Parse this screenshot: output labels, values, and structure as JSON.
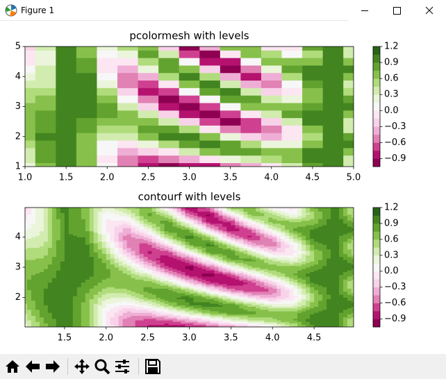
{
  "window": {
    "title": "Figure 1"
  },
  "chart_data": [
    {
      "type": "pcolormesh",
      "title": "pcolormesh with levels",
      "x": [
        1.0,
        1.25,
        1.5,
        1.75,
        2.0,
        2.25,
        2.5,
        2.75,
        3.0,
        3.25,
        3.5,
        3.75,
        4.0,
        4.25,
        4.5,
        4.75,
        5.0
      ],
      "y": [
        1.0,
        1.25,
        1.5,
        1.75,
        2.0,
        2.25,
        2.5,
        2.75,
        3.0,
        3.25,
        3.5,
        3.75,
        4.0,
        4.25,
        4.5,
        4.75,
        5.0
      ],
      "z": [
        [
          0.18,
          0.314,
          0.439,
          0.548,
          0.634,
          0.691,
          0.717,
          0.709,
          0.668,
          0.597,
          0.5,
          0.382,
          0.252,
          0.117,
          -0.013,
          -0.132,
          -0.232
        ],
        [
          0.672,
          0.762,
          0.835,
          0.885,
          0.907,
          0.898,
          0.86,
          0.795,
          0.712,
          0.616,
          0.518,
          0.428,
          0.353,
          0.301,
          0.278,
          0.286,
          0.322
        ],
        [
          1.009,
          1.029,
          1.042,
          1.046,
          1.039,
          1.024,
          1.002,
          0.976,
          0.95,
          0.927,
          0.912,
          0.905,
          0.907,
          0.92,
          0.939,
          0.964,
          0.991
        ],
        [
          0.729,
          0.685,
          0.673,
          0.694,
          0.745,
          0.816,
          0.893,
          0.962,
          1.011,
          1.029,
          1.014,
          0.968,
          0.9,
          0.823,
          0.751,
          0.698,
          0.674
        ],
        [
          0.035,
          -0.029,
          0.009,
          0.139,
          0.33,
          0.534,
          0.702,
          0.793,
          0.785,
          0.679,
          0.501,
          0.295,
          0.112,
          -0.004,
          -0.025,
          0.055,
          0.216
        ],
        [
          -0.516,
          -0.528,
          -0.353,
          -0.043,
          0.304,
          0.582,
          0.707,
          0.639,
          0.399,
          0.06,
          -0.271,
          -0.494,
          -0.54,
          -0.394,
          -0.101,
          0.247,
          0.545
        ],
        [
          -0.793,
          -0.673,
          -0.297,
          0.194,
          0.613,
          0.804,
          0.693,
          0.321,
          -0.17,
          -0.594,
          -0.791,
          -0.687,
          -0.321,
          0.169,
          0.597,
          0.802,
          0.706
        ],
        [
          -0.909,
          -0.595,
          -0.011,
          0.577,
          0.904,
          0.82,
          0.363,
          -0.259,
          -0.763,
          -0.921,
          -0.66,
          -0.099,
          0.509,
          0.882,
          0.857,
          0.443,
          -0.173
        ],
        [
          -0.899,
          -0.374,
          0.35,
          0.888,
          0.949,
          0.5,
          -0.217,
          -0.817,
          -0.979,
          -0.615,
          0.079,
          0.73,
          0.99,
          0.72,
          0.061,
          -0.629,
          -0.981
        ],
        [
          -0.771,
          -0.074,
          0.668,
          0.994,
          0.699,
          -0.034,
          -0.744,
          -0.99,
          -0.618,
          0.141,
          0.809,
          0.975,
          0.53,
          -0.246,
          -0.869,
          -0.948,
          -0.436
        ],
        [
          -0.558,
          0.22,
          0.84,
          0.858,
          0.258,
          -0.526,
          -0.932,
          -0.669,
          0.074,
          0.762,
          0.905,
          0.397,
          -0.397,
          -0.906,
          -0.764,
          -0.074,
          0.669
        ],
        [
          -0.307,
          0.432,
          0.821,
          0.543,
          -0.176,
          -0.748,
          -0.706,
          -0.084,
          0.609,
          0.808,
          0.351,
          -0.387,
          -0.809,
          -0.565,
          0.144,
          0.738,
          0.733
        ],
        [
          -0.028,
          0.557,
          0.688,
          0.242,
          -0.37,
          -0.584,
          -0.205,
          0.422,
          0.715,
          0.41,
          -0.215,
          -0.586,
          -0.361,
          0.253,
          0.691,
          0.552,
          -0.039
        ],
        [
          0.38,
          0.742,
          0.679,
          0.259,
          -0.089,
          -0.007,
          0.421,
          0.756,
          0.654,
          0.219,
          -0.101,
          0.02,
          0.46,
          0.766,
          0.624,
          0.069,
          -0.113
        ],
        [
          0.871,
          1.007,
          0.903,
          0.678,
          0.588,
          0.735,
          0.952,
          0.992,
          0.81,
          0.612,
          0.625,
          0.832,
          0.999,
          0.936,
          0.663,
          0.592,
          0.754
        ],
        [
          0.971,
          0.956,
          0.987,
          1.025,
          1.023,
          0.983,
          0.956,
          0.975,
          1.017,
          1.029,
          0.996,
          0.959,
          0.965,
          1.015,
          1.03,
          0.998,
          0.96
        ],
        [
          0.442,
          0.414,
          0.72,
          0.94,
          0.773,
          0.448,
          0.409,
          0.71,
          0.938,
          0.782,
          0.455,
          0.405,
          0.701,
          0.939,
          0.715,
          0.412,
          0.401
        ]
      ],
      "levels": [
        -1.05,
        -0.9,
        -0.75,
        -0.6,
        -0.45,
        -0.3,
        -0.15,
        0,
        0.15,
        0.3,
        0.45,
        0.6,
        0.75,
        0.9,
        1.05,
        1.2
      ],
      "colors": [
        "#8e0152",
        "#b51270",
        "#cf4190",
        "#e181b4",
        "#efaed5",
        "#f8d2e9",
        "#fbe6f2",
        "#f7f7f7",
        "#ebf5db",
        "#d2ecb0",
        "#b0dc7c",
        "#87c14b",
        "#62a32f",
        "#428520",
        "#276419"
      ],
      "xlim": [
        1,
        5
      ],
      "ylim": [
        1,
        5
      ],
      "xticks": [
        {
          "value": 1,
          "label": "1.0"
        },
        1.5,
        {
          "value": 2,
          "label": "2.0"
        },
        2.5,
        {
          "value": 3,
          "label": "3.0"
        },
        3.5,
        {
          "value": 4,
          "label": "4.0"
        },
        4.5,
        {
          "value": 5,
          "label": "5.0"
        }
      ],
      "yticks": [
        1,
        2,
        3,
        4,
        5
      ],
      "cbar_ticks": [
        {
          "value": -0.9,
          "label": "−0.9"
        },
        {
          "value": -0.6,
          "label": "−0.6"
        },
        {
          "value": -0.3,
          "label": "−0.3"
        },
        {
          "value": 0,
          "label": "0.0"
        },
        0.3,
        0.6,
        0.9,
        1.2
      ]
    },
    {
      "type": "contourf",
      "title": "contourf with levels",
      "x": [
        1.0,
        1.25,
        1.5,
        1.75,
        2.0,
        2.25,
        2.5,
        2.75,
        3.0,
        3.25,
        3.5,
        3.75,
        4.0,
        4.25,
        4.5,
        4.75,
        5.0
      ],
      "y": [
        1.0,
        1.25,
        1.5,
        1.75,
        2.0,
        2.25,
        2.5,
        2.75,
        3.0,
        3.25,
        3.5,
        3.75,
        4.0,
        4.25,
        4.5,
        4.75,
        5.0
      ],
      "z": [
        [
          0.18,
          0.314,
          0.439,
          0.548,
          0.634,
          0.691,
          0.717,
          0.709,
          0.668,
          0.597,
          0.5,
          0.382,
          0.252,
          0.117,
          -0.013,
          -0.132,
          -0.232
        ],
        [
          0.672,
          0.762,
          0.835,
          0.885,
          0.907,
          0.898,
          0.86,
          0.795,
          0.712,
          0.616,
          0.518,
          0.428,
          0.353,
          0.301,
          0.278,
          0.286,
          0.322
        ],
        [
          1.009,
          1.029,
          1.042,
          1.046,
          1.039,
          1.024,
          1.002,
          0.976,
          0.95,
          0.927,
          0.912,
          0.905,
          0.907,
          0.92,
          0.939,
          0.964,
          0.991
        ],
        [
          0.729,
          0.685,
          0.673,
          0.694,
          0.745,
          0.816,
          0.893,
          0.962,
          1.011,
          1.029,
          1.014,
          0.968,
          0.9,
          0.823,
          0.751,
          0.698,
          0.674
        ],
        [
          0.035,
          -0.029,
          0.009,
          0.139,
          0.33,
          0.534,
          0.702,
          0.793,
          0.785,
          0.679,
          0.501,
          0.295,
          0.112,
          -0.004,
          -0.025,
          0.055,
          0.216
        ],
        [
          -0.516,
          -0.528,
          -0.353,
          -0.043,
          0.304,
          0.582,
          0.707,
          0.639,
          0.399,
          0.06,
          -0.271,
          -0.494,
          -0.54,
          -0.394,
          -0.101,
          0.247,
          0.545
        ],
        [
          -0.793,
          -0.673,
          -0.297,
          0.194,
          0.613,
          0.804,
          0.693,
          0.321,
          -0.17,
          -0.594,
          -0.791,
          -0.687,
          -0.321,
          0.169,
          0.597,
          0.802,
          0.706
        ],
        [
          -0.909,
          -0.595,
          -0.011,
          0.577,
          0.904,
          0.82,
          0.363,
          -0.259,
          -0.763,
          -0.921,
          -0.66,
          -0.099,
          0.509,
          0.882,
          0.857,
          0.443,
          -0.173
        ],
        [
          -0.899,
          -0.374,
          0.35,
          0.888,
          0.949,
          0.5,
          -0.217,
          -0.817,
          -0.979,
          -0.615,
          0.079,
          0.73,
          0.99,
          0.72,
          0.061,
          -0.629,
          -0.981
        ],
        [
          -0.771,
          -0.074,
          0.668,
          0.994,
          0.699,
          -0.034,
          -0.744,
          -0.99,
          -0.618,
          0.141,
          0.809,
          0.975,
          0.53,
          -0.246,
          -0.869,
          -0.948,
          -0.436
        ],
        [
          -0.558,
          0.22,
          0.84,
          0.858,
          0.258,
          -0.526,
          -0.932,
          -0.669,
          0.074,
          0.762,
          0.905,
          0.397,
          -0.397,
          -0.906,
          -0.764,
          -0.074,
          0.669
        ],
        [
          -0.307,
          0.432,
          0.821,
          0.543,
          -0.176,
          -0.748,
          -0.706,
          -0.084,
          0.609,
          0.808,
          0.351,
          -0.387,
          -0.809,
          -0.565,
          0.144,
          0.738,
          0.733
        ],
        [
          -0.028,
          0.557,
          0.688,
          0.242,
          -0.37,
          -0.584,
          -0.205,
          0.422,
          0.715,
          0.41,
          -0.215,
          -0.586,
          -0.361,
          0.253,
          0.691,
          0.552,
          -0.039
        ],
        [
          0.38,
          0.742,
          0.679,
          0.259,
          -0.089,
          -0.007,
          0.421,
          0.756,
          0.654,
          0.219,
          -0.101,
          0.02,
          0.46,
          0.766,
          0.624,
          0.069,
          -0.113
        ],
        [
          0.871,
          1.007,
          0.903,
          0.678,
          0.588,
          0.735,
          0.952,
          0.992,
          0.81,
          0.612,
          0.625,
          0.832,
          0.999,
          0.936,
          0.663,
          0.592,
          0.754
        ],
        [
          0.971,
          0.956,
          0.987,
          1.025,
          1.023,
          0.983,
          0.956,
          0.975,
          1.017,
          1.029,
          0.996,
          0.959,
          0.965,
          1.015,
          1.03,
          0.998,
          0.96
        ],
        [
          0.442,
          0.414,
          0.72,
          0.94,
          0.773,
          0.448,
          0.409,
          0.71,
          0.938,
          0.782,
          0.455,
          0.405,
          0.701,
          0.939,
          0.715,
          0.412,
          0.401
        ]
      ],
      "levels": [
        -1.05,
        -0.9,
        -0.75,
        -0.6,
        -0.45,
        -0.3,
        -0.15,
        0,
        0.15,
        0.3,
        0.45,
        0.6,
        0.75,
        0.9,
        1.05,
        1.2
      ],
      "colors": [
        "#8e0152",
        "#b51270",
        "#cf4190",
        "#e181b4",
        "#efaed5",
        "#f8d2e9",
        "#fbe6f2",
        "#f7f7f7",
        "#ebf5db",
        "#d2ecb0",
        "#b0dc7c",
        "#87c14b",
        "#62a32f",
        "#428520",
        "#276419"
      ],
      "xlim": [
        1.025,
        4.975
      ],
      "ylim": [
        1.025,
        4.975
      ],
      "xticks": [
        1.5,
        {
          "value": 2,
          "label": "2.0"
        },
        2.5,
        {
          "value": 3,
          "label": "3.0"
        },
        3.5,
        {
          "value": 4,
          "label": "4.0"
        },
        4.5
      ],
      "yticks": [
        2,
        3,
        4
      ],
      "cbar_ticks": [
        {
          "value": -0.9,
          "label": "−0.9"
        },
        {
          "value": -0.6,
          "label": "−0.6"
        },
        {
          "value": -0.3,
          "label": "−0.3"
        },
        {
          "value": 0,
          "label": "0.0"
        },
        0.3,
        0.6,
        0.9,
        1.2
      ]
    }
  ]
}
